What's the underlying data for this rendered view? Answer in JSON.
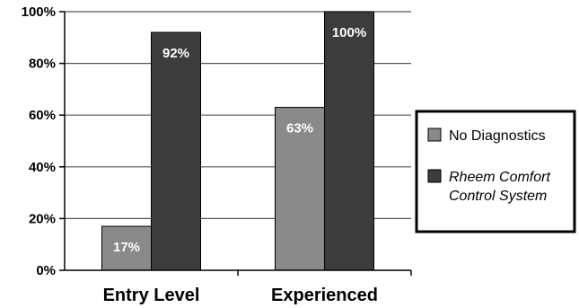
{
  "chart_data": {
    "type": "bar",
    "categories": [
      "Entry Level",
      "Experienced"
    ],
    "series": [
      {
        "name": "No Diagnostics",
        "values": [
          17,
          63
        ],
        "labels": [
          "17%",
          "63%"
        ],
        "color": "#8a8a8a"
      },
      {
        "name": "Rheem Comfort Control System",
        "values": [
          92,
          100
        ],
        "labels": [
          "92%",
          "100%"
        ],
        "color": "#3c3c3c"
      }
    ],
    "legend_lines": [
      [
        "No Diagnostics"
      ],
      [
        "Rheem Comfort",
        "Control System"
      ]
    ],
    "ylim": [
      0,
      100
    ],
    "yticks": [
      0,
      20,
      40,
      60,
      80,
      100
    ],
    "ytick_labels": [
      "0%",
      "20%",
      "40%",
      "60%",
      "80%",
      "100%"
    ],
    "grid": true,
    "legend_position": "right",
    "title": "",
    "xlabel": "",
    "ylabel": ""
  }
}
